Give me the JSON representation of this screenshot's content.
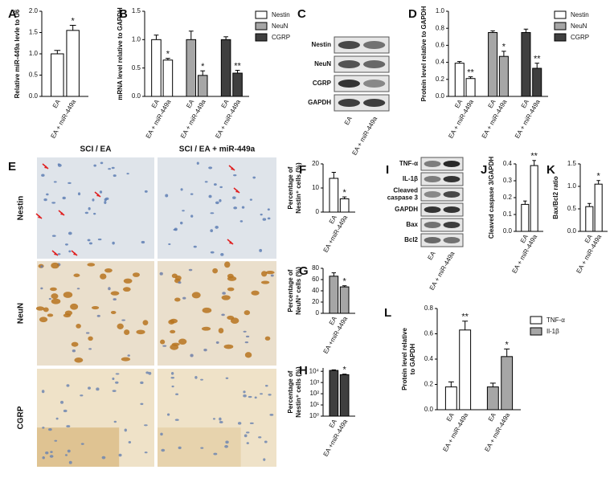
{
  "chart_data": [
    {
      "type": "bar",
      "panel": "A",
      "ylabel": [
        "Relative miR-449a levle to U6"
      ],
      "categories": [
        "EA",
        "EA + miR-449a"
      ],
      "values": [
        1.0,
        1.55
      ],
      "errors": [
        0.08,
        0.12
      ],
      "color": "#ffffff",
      "significance": "*",
      "ylim": [
        0,
        2.0
      ],
      "yticks": [
        {
          "value": 0,
          "label": "0.0"
        },
        0.5,
        {
          "value": 1,
          "label": "1.0"
        },
        1.5,
        {
          "value": 2,
          "label": "2.0"
        }
      ]
    },
    {
      "type": "bar",
      "panel": "B",
      "ylabel": [
        "mRNA level relative to GAPDH"
      ],
      "categories": [
        "EA",
        "EA + miR-449a"
      ],
      "series": [
        {
          "name": "Nestin",
          "color": "#ffffff",
          "values": [
            1.0,
            0.64
          ],
          "errors": [
            0.08,
            0.03
          ],
          "significance": "*"
        },
        {
          "name": "NeuN",
          "color": "#a6a6a6",
          "values": [
            1.0,
            0.37
          ],
          "errors": [
            0.15,
            0.08
          ],
          "significance": "*"
        },
        {
          "name": "CGRP",
          "color": "#3f3f3f",
          "values": [
            1.0,
            0.41
          ],
          "errors": [
            0.05,
            0.05
          ],
          "significance": "**"
        }
      ],
      "ylim": [
        0,
        1.5
      ],
      "yticks": [
        {
          "value": 0,
          "label": "0.0"
        },
        0.5,
        {
          "value": 1,
          "label": "1.0"
        },
        1.5
      ]
    },
    {
      "type": "bar",
      "panel": "D",
      "ylabel": [
        "Protein level relative to GAPDH"
      ],
      "categories": [
        "EA",
        "EA + miR-449a"
      ],
      "series": [
        {
          "name": "Nestin",
          "color": "#ffffff",
          "values": [
            0.39,
            0.21
          ],
          "errors": [
            0.02,
            0.02
          ],
          "significance": "**"
        },
        {
          "name": "NeuN",
          "color": "#a6a6a6",
          "values": [
            0.75,
            0.47
          ],
          "errors": [
            0.02,
            0.06
          ],
          "significance": "*"
        },
        {
          "name": "CGRP",
          "color": "#3f3f3f",
          "values": [
            0.75,
            0.33
          ],
          "errors": [
            0.04,
            0.06
          ],
          "significance": "**"
        }
      ],
      "ylim": [
        0,
        1.0
      ],
      "yticks": [
        {
          "value": 0,
          "label": "0.0"
        },
        0.2,
        0.4,
        0.6,
        0.8,
        {
          "value": 1,
          "label": "1.0"
        }
      ]
    },
    {
      "type": "bar",
      "panel": "F",
      "ylabel": [
        "Percentage of",
        "Nestin⁺ cells (%)"
      ],
      "categories": [
        "EA",
        "EA +miR-449a"
      ],
      "values": [
        14,
        5.5
      ],
      "errors": [
        2.5,
        0.8
      ],
      "color": "#ffffff",
      "significance": "*",
      "ylim": [
        0,
        20
      ],
      "yticks": [
        0,
        10,
        20
      ]
    },
    {
      "type": "bar",
      "panel": "G",
      "ylabel": [
        "Percentage of",
        "NeuN⁺ cells (%)"
      ],
      "categories": [
        "EA",
        "EA +miR-449a"
      ],
      "values": [
        66,
        47
      ],
      "errors": [
        6,
        2
      ],
      "color": "#a6a6a6",
      "significance": "*",
      "ylim": [
        0,
        80
      ],
      "yticks": [
        0,
        20,
        40,
        60,
        80
      ]
    },
    {
      "type": "bar",
      "panel": "H",
      "ylabel": [
        "Percentage of",
        "Nestin⁺ cells (%)"
      ],
      "categories": [
        "EA",
        "EA +miR-449a"
      ],
      "values": [
        12000,
        5000
      ],
      "errors": [
        1500,
        600
      ],
      "color": "#3f3f3f",
      "significance": "*",
      "log": true,
      "ylim": [
        1,
        20000
      ],
      "yticks": [
        {
          "value": 1,
          "label": "10⁰"
        },
        {
          "value": 10,
          "label": "10¹"
        },
        {
          "value": 100,
          "label": "10²"
        },
        {
          "value": 1000,
          "label": "10³"
        },
        {
          "value": 10000,
          "label": "10⁴"
        }
      ]
    },
    {
      "type": "bar",
      "panel": "J",
      "ylabel": [
        "Cleaved caspase 3/GAPDH"
      ],
      "categories": [
        "EA",
        "EA + miR-449a"
      ],
      "values": [
        0.16,
        0.39
      ],
      "errors": [
        0.02,
        0.03
      ],
      "color": "#ffffff",
      "significance": "**",
      "ylim": [
        0,
        0.4
      ],
      "yticks": [
        {
          "value": 0,
          "label": "0.0"
        },
        0.1,
        0.2,
        0.3,
        0.4
      ]
    },
    {
      "type": "bar",
      "panel": "K",
      "ylabel": [
        "Bax/Bcl2 ratio"
      ],
      "categories": [
        "EA",
        "EA + miR-449a"
      ],
      "values": [
        0.55,
        1.05
      ],
      "errors": [
        0.07,
        0.08
      ],
      "color": "#ffffff",
      "significance": "*",
      "ylim": [
        0,
        1.5
      ],
      "yticks": [
        {
          "value": 0,
          "label": "0.0"
        },
        0.5,
        {
          "value": 1,
          "label": "1.0"
        },
        1.5
      ]
    },
    {
      "type": "bar",
      "panel": "L",
      "ylabel": [
        "Protein level relative",
        "to GAPDH"
      ],
      "categories": [
        "EA",
        "EA + miR-449a"
      ],
      "series": [
        {
          "name": "TNF-α",
          "color": "#ffffff",
          "values": [
            0.18,
            0.63
          ],
          "errors": [
            0.04,
            0.07
          ],
          "significance": "**"
        },
        {
          "name": "Il-1β",
          "color": "#a6a6a6",
          "values": [
            0.18,
            0.42
          ],
          "errors": [
            0.03,
            0.06
          ],
          "significance": "*"
        }
      ],
      "ylim": [
        0,
        0.8
      ],
      "yticks": [
        {
          "value": 0,
          "label": "0.0"
        },
        0.2,
        0.4,
        0.6,
        0.8
      ]
    }
  ],
  "blots": [
    {
      "panel": "C",
      "labels": [
        [
          "Nestin"
        ],
        [
          "NeuN"
        ],
        [
          "CGRP"
        ],
        [
          "GAPDH"
        ]
      ],
      "lanes": [
        "EA",
        "EA + miR-449a"
      ]
    },
    {
      "panel": "I",
      "labels": [
        [
          "TNF-α"
        ],
        [
          "IL-1β"
        ],
        [
          "Cleaved",
          "caspase 3"
        ],
        [
          "GAPDH"
        ],
        [
          "Bax"
        ],
        [
          "Bcl2"
        ]
      ],
      "lanes": [
        "EA",
        "EA + miR-449a"
      ]
    }
  ],
  "micrographs": {
    "panel": "E",
    "columns": [
      "SCI / EA",
      "SCI / EA + miR-449a"
    ],
    "rows": [
      "Nestin",
      "NeuN",
      "CGRP"
    ]
  }
}
